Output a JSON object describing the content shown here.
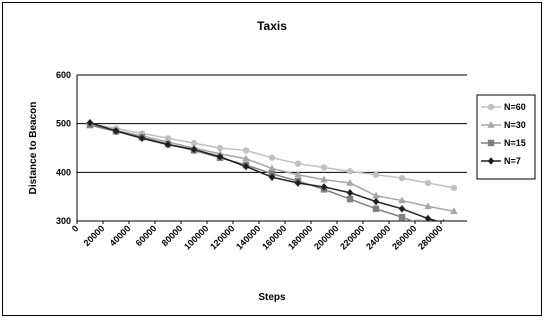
{
  "chart_data": {
    "type": "line",
    "title": "Taxis",
    "xlabel": "Steps",
    "ylabel": "Distance to Beacon",
    "ylim": [
      300,
      600
    ],
    "yticks": [
      300,
      400,
      500,
      600
    ],
    "xlim": [
      0,
      300000
    ],
    "xticks": [
      0,
      20000,
      40000,
      60000,
      80000,
      100000,
      120000,
      140000,
      160000,
      180000,
      200000,
      220000,
      240000,
      260000,
      280000
    ],
    "grid": "horizontal",
    "legend_position": "right",
    "series": [
      {
        "name": "N=60",
        "color": "#c0c0c0",
        "marker": "circle",
        "x": [
          10000,
          30000,
          50000,
          70000,
          90000,
          110000,
          130000,
          150000,
          170000,
          190000,
          210000,
          230000,
          250000,
          270000,
          290000
        ],
        "y": [
          500,
          490,
          480,
          470,
          460,
          450,
          445,
          430,
          418,
          410,
          402,
          395,
          388,
          378,
          368
        ]
      },
      {
        "name": "N=30",
        "color": "#a6a6a6",
        "marker": "triangle",
        "x": [
          10000,
          30000,
          50000,
          70000,
          90000,
          110000,
          130000,
          150000,
          170000,
          190000,
          210000,
          230000,
          250000,
          270000,
          290000
        ],
        "y": [
          498,
          486,
          475,
          462,
          450,
          438,
          428,
          408,
          395,
          385,
          378,
          352,
          342,
          330,
          320
        ]
      },
      {
        "name": "N=15",
        "color": "#808080",
        "marker": "square",
        "x": [
          10000,
          30000,
          50000,
          70000,
          90000,
          110000,
          130000,
          150000,
          170000,
          190000,
          210000,
          230000,
          250000,
          262000
        ],
        "y": [
          497,
          484,
          472,
          458,
          445,
          430,
          415,
          397,
          382,
          365,
          345,
          325,
          308,
          296
        ]
      },
      {
        "name": "N=7",
        "color": "#202020",
        "marker": "diamond",
        "x": [
          10000,
          30000,
          50000,
          70000,
          90000,
          110000,
          130000,
          150000,
          170000,
          190000,
          210000,
          230000,
          250000,
          270000,
          282000
        ],
        "y": [
          502,
          485,
          470,
          457,
          447,
          432,
          412,
          390,
          378,
          370,
          358,
          340,
          325,
          305,
          296
        ]
      }
    ]
  }
}
